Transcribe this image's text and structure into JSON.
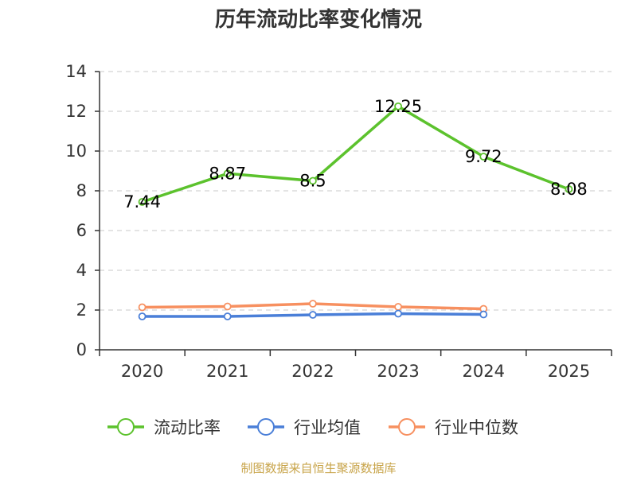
{
  "chart_data": {
    "type": "line",
    "title": "历年流动比率变化情况",
    "categories": [
      "2020",
      "2021",
      "2022",
      "2023",
      "2024",
      "2025"
    ],
    "series": [
      {
        "name": "流动比率",
        "color": "#5cc22d",
        "values": [
          7.44,
          8.87,
          8.5,
          12.25,
          9.72,
          8.08
        ],
        "labels": [
          "7.44",
          "8.87",
          "8.5",
          "12.25",
          "9.72",
          "8.08"
        ]
      },
      {
        "name": "行业均值",
        "color": "#4a7fd8",
        "values": [
          1.68,
          1.68,
          1.76,
          1.82,
          1.78,
          null
        ]
      },
      {
        "name": "行业中位数",
        "color": "#f79060",
        "values": [
          2.14,
          2.18,
          2.32,
          2.16,
          2.06,
          null
        ]
      }
    ],
    "ylim": [
      0,
      14
    ],
    "yticks": [
      0,
      2,
      4,
      6,
      8,
      10,
      12,
      14
    ],
    "grid": true,
    "legend_position": "bottom"
  },
  "source": "制图数据来自恒生聚源数据库"
}
